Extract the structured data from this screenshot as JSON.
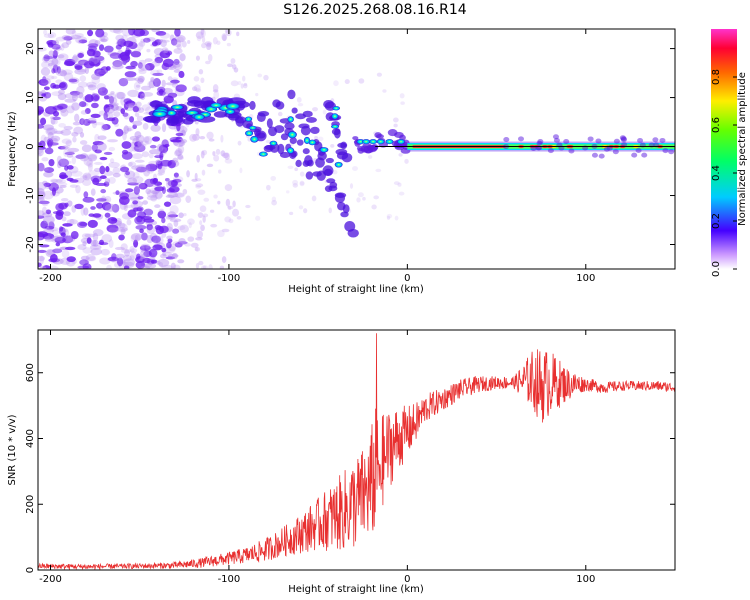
{
  "title": "S126.2025.268.08.16.R14",
  "chart_data": [
    {
      "type": "heatmap",
      "title": "",
      "xlabel": "Height of straight line (km)",
      "ylabel": "Frequency (Hz)",
      "xlim": [
        -207,
        150
      ],
      "ylim": [
        -25,
        24
      ],
      "xticks": [
        -200,
        -100,
        0,
        100
      ],
      "yticks": [
        -20,
        -10,
        0,
        10,
        20
      ],
      "colorbar": {
        "label": "Normalized spectral amplitude",
        "range": [
          0,
          1
        ],
        "ticks": [
          0.0,
          0.2,
          0.4,
          0.6,
          0.8
        ]
      },
      "features": [
        {
          "name": "noise cloud",
          "x_range": [
            -207,
            -125
          ],
          "freq_range": [
            -25,
            24
          ]
        },
        {
          "name": "tone band",
          "x_range": [
            -145,
            -95
          ],
          "freq_center": 7
        },
        {
          "name": "descending streaks",
          "x_range": [
            -95,
            -30
          ],
          "freq_range": [
            -18,
            10
          ]
        },
        {
          "name": "carrier line",
          "x_range": [
            0,
            150
          ],
          "freq_center": 0
        }
      ]
    },
    {
      "type": "line",
      "title": "",
      "xlabel": "Height of straight line (km)",
      "ylabel": "SNR (10 * v/v)",
      "xlim": [
        -207,
        150
      ],
      "ylim": [
        0,
        730
      ],
      "xticks": [
        -200,
        -100,
        0,
        100
      ],
      "yticks": [
        0,
        200,
        400,
        600
      ],
      "series": [
        {
          "name": "SNR",
          "color": "#e83030",
          "x": [
            -207,
            -180,
            -150,
            -130,
            -115,
            -100,
            -90,
            -80,
            -70,
            -60,
            -50,
            -40,
            -30,
            -22,
            -18,
            -15,
            -10,
            -5,
            0,
            5,
            10,
            20,
            30,
            40,
            50,
            60,
            70,
            75,
            80,
            90,
            100,
            110,
            120,
            130,
            140,
            150
          ],
          "mean": [
            12,
            10,
            12,
            14,
            22,
            35,
            45,
            60,
            85,
            110,
            140,
            165,
            200,
            240,
            300,
            320,
            370,
            400,
            420,
            450,
            490,
            520,
            550,
            565,
            570,
            570,
            580,
            560,
            570,
            565,
            565,
            555,
            560,
            560,
            560,
            555
          ],
          "amp": [
            8,
            8,
            8,
            10,
            15,
            20,
            25,
            35,
            45,
            60,
            80,
            110,
            140,
            150,
            200,
            150,
            120,
            100,
            80,
            60,
            45,
            35,
            30,
            25,
            20,
            20,
            90,
            120,
            100,
            50,
            20,
            18,
            15,
            15,
            15,
            15
          ]
        }
      ]
    }
  ]
}
